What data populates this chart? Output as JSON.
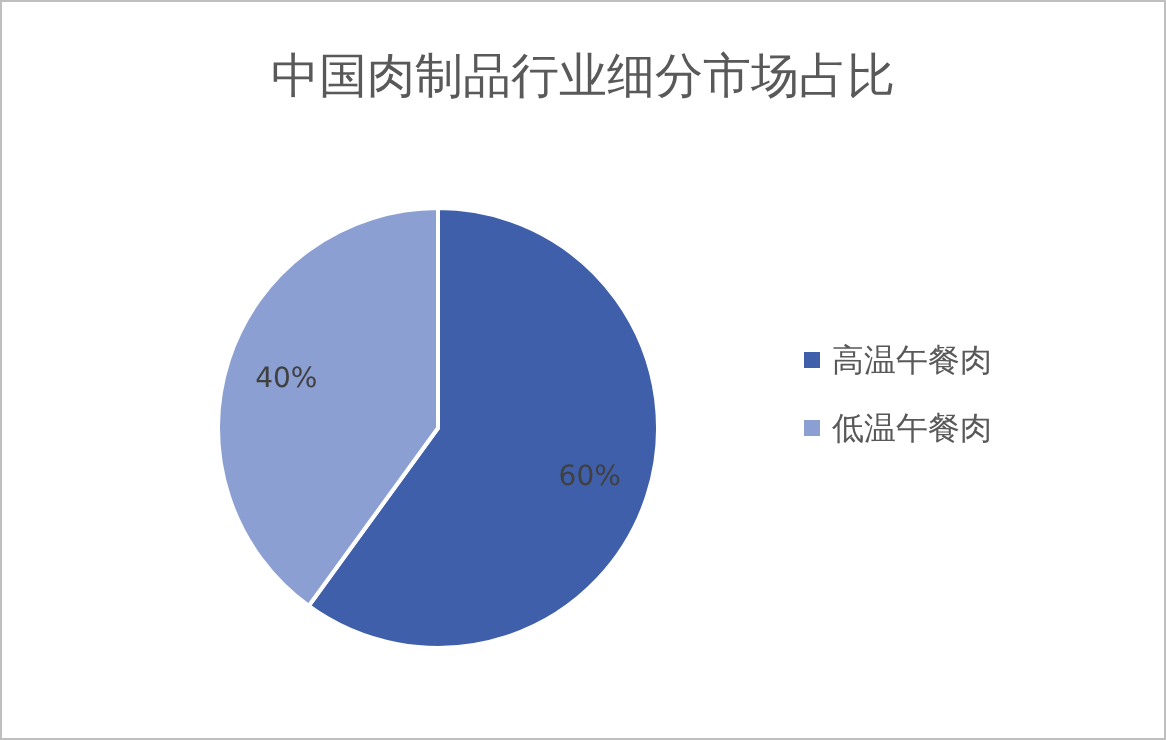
{
  "chart_data": {
    "type": "pie",
    "title": "中国肉制品行业细分市场占比",
    "categories": [
      "高温午餐肉",
      "低温午餐肉"
    ],
    "values": [
      60,
      40
    ],
    "colors": [
      "#3f5faa",
      "#8c9fd2"
    ],
    "value_labels": [
      "60%",
      "40%"
    ],
    "legend": "right"
  }
}
